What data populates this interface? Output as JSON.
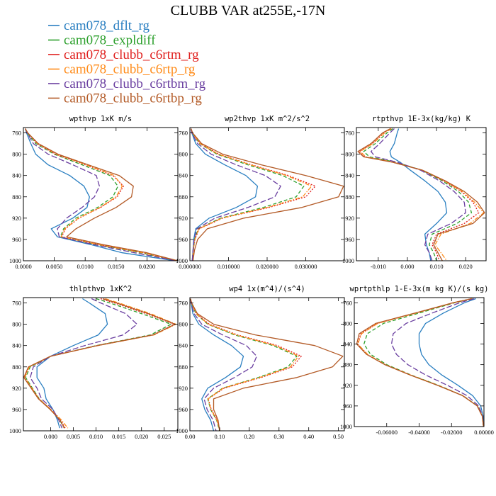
{
  "title": "CLUBB VAR at255E,-17N",
  "colors": {
    "cam078_dflt_rg": "#2a7fc1",
    "cam078_expldiff": "#2ca02c",
    "cam078_clubb_c6rtm_rg": "#e0201e",
    "cam078_clubb_c6rtp_rg": "#ff8c1a",
    "cam078_clubb_c6rtbm_rg": "#6a3fa0",
    "cam078_clubb_c6rtbp_rg": "#b35a26"
  },
  "legend": [
    {
      "name": "cam078_dflt_rg",
      "dash": "solid"
    },
    {
      "name": "cam078_expldiff",
      "dash": "solid"
    },
    {
      "name": "cam078_clubb_c6rtm_rg",
      "dash": "solid"
    },
    {
      "name": "cam078_clubb_c6rtp_rg",
      "dash": "solid"
    },
    {
      "name": "cam078_clubb_c6rtbm_rg",
      "dash": "solid"
    },
    {
      "name": "cam078_clubb_c6rtbp_rg",
      "dash": "solid"
    }
  ],
  "chart_data": [
    {
      "type": "line",
      "title": "wpthvp  1xK m/s",
      "xlim": [
        0.0,
        0.025
      ],
      "ylim": [
        1000,
        750
      ],
      "xticks": [
        "0.0000",
        "0.0050",
        "0.0100",
        "0.0150",
        "0.0200"
      ],
      "xtick_values": [
        0.0,
        0.005,
        0.01,
        0.015,
        0.02
      ],
      "yticks": [
        760,
        800,
        840,
        880,
        920,
        960,
        1000
      ],
      "y": [
        752,
        760,
        780,
        800,
        820,
        840,
        860,
        880,
        900,
        920,
        940,
        955,
        970,
        985,
        1000
      ],
      "series": [
        {
          "name": "cam078_dflt_rg",
          "dash": "solid",
          "x": [
            0.0003,
            0.0005,
            0.0012,
            0.002,
            0.004,
            0.0075,
            0.0098,
            0.0107,
            0.0103,
            0.008,
            0.0045,
            0.0055,
            0.011,
            0.016,
            0.0245
          ]
        },
        {
          "name": "cam078_expldiff",
          "dash": "dashed",
          "x": [
            0.0003,
            0.0006,
            0.002,
            0.005,
            0.0095,
            0.014,
            0.0153,
            0.0145,
            0.012,
            0.0085,
            0.0065,
            0.006,
            0.012,
            0.019,
            0.0248
          ]
        },
        {
          "name": "cam078_clubb_c6rtm_rg",
          "dash": "dotted",
          "x": [
            0.0003,
            0.0007,
            0.0022,
            0.0052,
            0.01,
            0.0145,
            0.0162,
            0.0152,
            0.0125,
            0.009,
            0.0068,
            0.0062,
            0.0125,
            0.0195,
            0.0249
          ]
        },
        {
          "name": "cam078_clubb_c6rtp_rg",
          "dash": "dashdot",
          "x": [
            0.0003,
            0.0007,
            0.0023,
            0.0054,
            0.0102,
            0.0147,
            0.016,
            0.015,
            0.0124,
            0.0089,
            0.0067,
            0.0061,
            0.0123,
            0.0193,
            0.0249
          ]
        },
        {
          "name": "cam078_clubb_c6rtbm_rg",
          "dash": "longdash",
          "x": [
            0.0003,
            0.0006,
            0.0016,
            0.004,
            0.008,
            0.0118,
            0.0123,
            0.0115,
            0.0095,
            0.007,
            0.0055,
            0.0058,
            0.0115,
            0.018,
            0.0247
          ]
        },
        {
          "name": "cam078_clubb_c6rtbp_rg",
          "dash": "solid",
          "x": [
            0.0003,
            0.0007,
            0.0024,
            0.0056,
            0.0105,
            0.0155,
            0.0178,
            0.0175,
            0.015,
            0.0115,
            0.0085,
            0.007,
            0.013,
            0.02,
            0.025
          ]
        }
      ]
    },
    {
      "type": "line",
      "title": "wp2thvp  1xK m^2/s^2",
      "xlim": [
        0.0,
        0.04
      ],
      "ylim": [
        1000,
        750
      ],
      "xticks": [
        "0.000000",
        "0.010000",
        "0.020000",
        "0.030000"
      ],
      "xtick_values": [
        0.0,
        0.01,
        0.02,
        0.03
      ],
      "yticks": [
        760,
        800,
        840,
        880,
        920,
        960,
        1000
      ],
      "y": [
        752,
        760,
        780,
        800,
        820,
        840,
        860,
        880,
        900,
        920,
        940,
        960,
        980,
        1000
      ],
      "series": [
        {
          "name": "cam078_dflt_rg",
          "dash": "solid",
          "x": [
            0.0003,
            0.0005,
            0.0015,
            0.004,
            0.009,
            0.0145,
            0.0175,
            0.017,
            0.012,
            0.005,
            0.0015,
            0.001,
            0.0008,
            0.0006
          ]
        },
        {
          "name": "cam078_expldiff",
          "dash": "dashed",
          "x": [
            0.0003,
            0.0006,
            0.0025,
            0.007,
            0.015,
            0.024,
            0.0295,
            0.0275,
            0.019,
            0.008,
            0.0022,
            0.0012,
            0.0009,
            0.0007
          ]
        },
        {
          "name": "cam078_clubb_c6rtm_rg",
          "dash": "dotted",
          "x": [
            0.0003,
            0.0006,
            0.0027,
            0.0075,
            0.016,
            0.0255,
            0.0325,
            0.03,
            0.0205,
            0.0085,
            0.0024,
            0.0013,
            0.0009,
            0.0007
          ]
        },
        {
          "name": "cam078_clubb_c6rtp_rg",
          "dash": "dashdot",
          "x": [
            0.0003,
            0.0006,
            0.0026,
            0.0073,
            0.0157,
            0.025,
            0.0315,
            0.0292,
            0.02,
            0.0083,
            0.0023,
            0.0013,
            0.0009,
            0.0007
          ]
        },
        {
          "name": "cam078_clubb_c6rtbm_rg",
          "dash": "longdash",
          "x": [
            0.0003,
            0.0005,
            0.002,
            0.0055,
            0.012,
            0.0195,
            0.0235,
            0.022,
            0.015,
            0.0065,
            0.0018,
            0.0011,
            0.0008,
            0.0006
          ]
        },
        {
          "name": "cam078_clubb_c6rtbp_rg",
          "dash": "solid",
          "x": [
            0.0003,
            0.0007,
            0.003,
            0.0085,
            0.0185,
            0.03,
            0.0398,
            0.0385,
            0.029,
            0.014,
            0.0045,
            0.002,
            0.0012,
            0.0008
          ]
        }
      ]
    },
    {
      "type": "line",
      "title": "rtpthvp  1E-3x(kg/kg) K",
      "xlim": [
        -0.0175,
        0.027
      ],
      "ylim": [
        1000,
        750
      ],
      "xticks": [
        "-0.010",
        "0.000",
        "0.010",
        "0.020"
      ],
      "xtick_values": [
        -0.01,
        0.0,
        0.01,
        0.02
      ],
      "yticks": [
        760,
        800,
        840,
        880,
        920,
        960,
        1000
      ],
      "y": [
        752,
        760,
        780,
        795,
        805,
        815,
        830,
        850,
        870,
        890,
        910,
        930,
        950,
        970,
        985,
        1000
      ],
      "series": [
        {
          "name": "cam078_dflt_rg",
          "dash": "solid",
          "x": [
            -0.003,
            -0.0035,
            -0.0045,
            -0.006,
            -0.0055,
            -0.0025,
            0.001,
            0.006,
            0.0105,
            0.013,
            0.0135,
            0.01,
            0.006,
            0.0065,
            0.0075,
            0.008
          ]
        },
        {
          "name": "cam078_expldiff",
          "dash": "dashed",
          "x": [
            -0.005,
            -0.007,
            -0.011,
            -0.015,
            -0.013,
            -0.004,
            0.005,
            0.012,
            0.0175,
            0.021,
            0.022,
            0.017,
            0.0085,
            0.0075,
            0.009,
            0.01
          ]
        },
        {
          "name": "cam078_clubb_c6rtm_rg",
          "dash": "dotted",
          "x": [
            -0.0055,
            -0.008,
            -0.012,
            -0.0165,
            -0.0145,
            -0.005,
            0.005,
            0.0125,
            0.0185,
            0.0225,
            0.0245,
            0.0195,
            0.01,
            0.0085,
            0.01,
            0.011
          ]
        },
        {
          "name": "cam078_clubb_c6rtp_rg",
          "dash": "dashdot",
          "x": [
            -0.0055,
            -0.0078,
            -0.0118,
            -0.0162,
            -0.0142,
            -0.0048,
            0.0052,
            0.0127,
            0.0188,
            0.023,
            0.0262,
            0.0215,
            0.0115,
            0.0095,
            0.0115,
            0.0135
          ]
        },
        {
          "name": "cam078_clubb_c6rtbm_rg",
          "dash": "longdash",
          "x": [
            -0.0045,
            -0.006,
            -0.0095,
            -0.0125,
            -0.011,
            -0.0035,
            0.0045,
            0.011,
            0.016,
            0.0195,
            0.02,
            0.015,
            0.007,
            0.006,
            0.0075,
            0.0085
          ]
        },
        {
          "name": "cam078_clubb_c6rtbp_rg",
          "dash": "solid",
          "x": [
            -0.0058,
            -0.0085,
            -0.0125,
            -0.017,
            -0.015,
            -0.0052,
            0.0052,
            0.013,
            0.0195,
            0.024,
            0.0265,
            0.0225,
            0.0105,
            0.009,
            0.0105,
            0.012
          ]
        }
      ]
    },
    {
      "type": "line",
      "title": "thlpthvp  1xK^2",
      "xlim": [
        -0.006,
        0.028
      ],
      "ylim": [
        1000,
        750
      ],
      "xticks": [
        "0.000",
        "0.005",
        "0.010",
        "0.015",
        "0.020",
        "0.025"
      ],
      "xtick_values": [
        0.0,
        0.005,
        0.01,
        0.015,
        0.02,
        0.025
      ],
      "yticks": [
        760,
        800,
        840,
        880,
        920,
        960,
        1000
      ],
      "y": [
        752,
        760,
        780,
        800,
        820,
        840,
        860,
        880,
        900,
        920,
        940,
        960,
        980,
        995
      ],
      "series": [
        {
          "name": "cam078_dflt_rg",
          "dash": "solid",
          "x": [
            0.007,
            0.0085,
            0.012,
            0.0125,
            0.0105,
            0.005,
            0.0,
            -0.003,
            -0.003,
            -0.0015,
            -0.001,
            0.0005,
            0.0015,
            0.002
          ]
        },
        {
          "name": "cam078_expldiff",
          "dash": "dashed",
          "x": [
            0.01,
            0.013,
            0.02,
            0.0265,
            0.022,
            0.01,
            0.0,
            -0.0045,
            -0.0055,
            -0.004,
            -0.0025,
            0.0,
            0.002,
            0.003
          ]
        },
        {
          "name": "cam078_clubb_c6rtm_rg",
          "dash": "dotted",
          "x": [
            0.011,
            0.014,
            0.021,
            0.0272,
            0.0225,
            0.0102,
            0.0,
            -0.0048,
            -0.0058,
            -0.0042,
            -0.0026,
            0.0,
            0.0022,
            0.0032
          ]
        },
        {
          "name": "cam078_clubb_c6rtp_rg",
          "dash": "dashdot",
          "x": [
            0.012,
            0.015,
            0.022,
            0.0276,
            0.0228,
            0.0104,
            0.0001,
            -0.0047,
            -0.0057,
            -0.0041,
            -0.0026,
            0.0001,
            0.0024,
            0.0038
          ]
        },
        {
          "name": "cam078_clubb_c6rtbm_rg",
          "dash": "longdash",
          "x": [
            0.009,
            0.011,
            0.0165,
            0.019,
            0.016,
            0.0075,
            0.0,
            -0.0038,
            -0.0045,
            -0.003,
            -0.002,
            0.0005,
            0.0018,
            0.0025
          ]
        },
        {
          "name": "cam078_clubb_c6rtbp_rg",
          "dash": "solid",
          "x": [
            0.0115,
            0.0145,
            0.0215,
            0.0274,
            0.0226,
            0.0103,
            0.0,
            -0.0049,
            -0.0059,
            -0.0043,
            -0.0027,
            -0.0001,
            0.0021,
            0.003
          ]
        }
      ]
    },
    {
      "type": "line",
      "title": "wp4  1x(m^4)/(s^4)",
      "xlim": [
        0.0,
        0.52
      ],
      "ylim": [
        1000,
        750
      ],
      "xticks": [
        "0.00",
        "0.10",
        "0.20",
        "0.30",
        "0.40",
        "0.50"
      ],
      "xtick_values": [
        0.0,
        0.1,
        0.2,
        0.3,
        0.4,
        0.5
      ],
      "yticks": [
        760,
        800,
        840,
        880,
        920,
        960,
        1000
      ],
      "y": [
        752,
        760,
        780,
        800,
        820,
        840,
        860,
        880,
        900,
        920,
        940,
        960,
        980,
        1000
      ],
      "series": [
        {
          "name": "cam078_dflt_rg",
          "dash": "solid",
          "x": [
            0.002,
            0.004,
            0.01,
            0.03,
            0.08,
            0.14,
            0.18,
            0.17,
            0.12,
            0.06,
            0.04,
            0.05,
            0.07,
            0.08
          ]
        },
        {
          "name": "cam078_expldiff",
          "dash": "dashed",
          "x": [
            0.002,
            0.005,
            0.02,
            0.06,
            0.15,
            0.28,
            0.36,
            0.33,
            0.23,
            0.11,
            0.06,
            0.07,
            0.09,
            0.1
          ]
        },
        {
          "name": "cam078_clubb_c6rtm_rg",
          "dash": "dotted",
          "x": [
            0.002,
            0.006,
            0.022,
            0.065,
            0.16,
            0.295,
            0.375,
            0.345,
            0.24,
            0.115,
            0.062,
            0.072,
            0.092,
            0.102
          ]
        },
        {
          "name": "cam078_clubb_c6rtp_rg",
          "dash": "dashdot",
          "x": [
            0.002,
            0.005,
            0.021,
            0.062,
            0.155,
            0.288,
            0.366,
            0.338,
            0.235,
            0.112,
            0.061,
            0.071,
            0.091,
            0.101
          ]
        },
        {
          "name": "cam078_clubb_c6rtbm_rg",
          "dash": "longdash",
          "x": [
            0.002,
            0.004,
            0.014,
            0.04,
            0.11,
            0.19,
            0.225,
            0.21,
            0.15,
            0.08,
            0.048,
            0.058,
            0.078,
            0.088
          ]
        },
        {
          "name": "cam078_clubb_c6rtbp_rg",
          "dash": "solid",
          "x": [
            0.002,
            0.006,
            0.025,
            0.08,
            0.22,
            0.42,
            0.515,
            0.48,
            0.36,
            0.18,
            0.08,
            0.08,
            0.095,
            0.1
          ]
        }
      ]
    },
    {
      "type": "line",
      "title": "wprtpthlp  1-E-3x(m kg K)/(s kg)",
      "xlim": [
        -0.08,
        0.0
      ],
      "ylim": [
        1000,
        750
      ],
      "xticks": [
        "-0.06000",
        "-0.04000",
        "-0.02000",
        "0.00000"
      ],
      "xtick_values": [
        -0.06,
        -0.04,
        -0.02,
        0.0
      ],
      "yticks": [
        760,
        800,
        840,
        880,
        920,
        960,
        1000
      ],
      "y": [
        752,
        760,
        780,
        800,
        820,
        840,
        860,
        880,
        900,
        920,
        940,
        960,
        980,
        1000
      ],
      "series": [
        {
          "name": "cam078_dflt_rg",
          "dash": "solid",
          "x": [
            -0.005,
            -0.012,
            -0.025,
            -0.036,
            -0.04,
            -0.04,
            -0.0385,
            -0.034,
            -0.026,
            -0.016,
            -0.007,
            -0.002,
            -0.0005,
            -0.0002
          ]
        },
        {
          "name": "cam078_expldiff",
          "dash": "dashed",
          "x": [
            -0.007,
            -0.018,
            -0.04,
            -0.062,
            -0.072,
            -0.074,
            -0.07,
            -0.06,
            -0.045,
            -0.028,
            -0.013,
            -0.004,
            -0.001,
            -0.0003
          ]
        },
        {
          "name": "cam078_clubb_c6rtm_rg",
          "dash": "dotted",
          "x": [
            -0.0075,
            -0.019,
            -0.042,
            -0.066,
            -0.076,
            -0.078,
            -0.072,
            -0.061,
            -0.0455,
            -0.0285,
            -0.0132,
            -0.0041,
            -0.001,
            -0.0003
          ]
        },
        {
          "name": "cam078_clubb_c6rtp_rg",
          "dash": "dashdot",
          "x": [
            -0.0074,
            -0.0188,
            -0.0418,
            -0.0655,
            -0.0755,
            -0.0778,
            -0.0718,
            -0.0608,
            -0.0453,
            -0.0284,
            -0.0131,
            -0.0041,
            -0.001,
            -0.0003
          ]
        },
        {
          "name": "cam078_clubb_c6rtbm_rg",
          "dash": "longdash",
          "x": [
            -0.006,
            -0.015,
            -0.032,
            -0.048,
            -0.056,
            -0.057,
            -0.054,
            -0.047,
            -0.036,
            -0.0225,
            -0.0105,
            -0.0032,
            -0.0008,
            -0.0002
          ]
        },
        {
          "name": "cam078_clubb_c6rtbp_rg",
          "dash": "solid",
          "x": [
            -0.0076,
            -0.0192,
            -0.0425,
            -0.0668,
            -0.077,
            -0.0785,
            -0.0725,
            -0.0612,
            -0.0457,
            -0.0287,
            -0.0133,
            -0.0042,
            -0.001,
            -0.0003
          ]
        }
      ]
    }
  ]
}
